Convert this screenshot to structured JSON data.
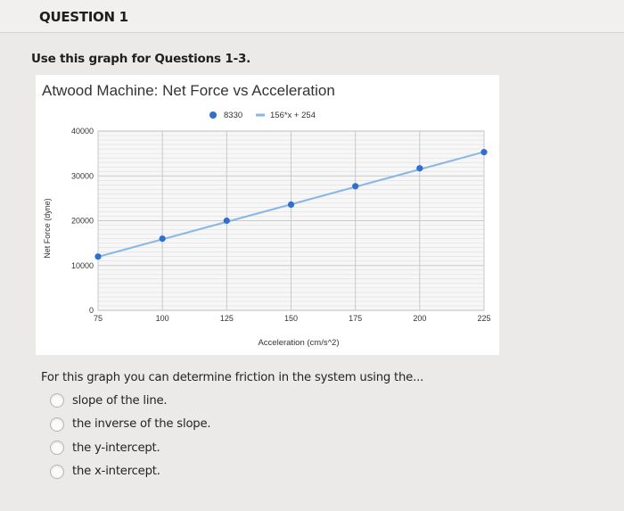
{
  "question": {
    "title": "QUESTION 1",
    "instruction": "Use this graph for Questions 1-3.",
    "prompt": "For this graph you can determine friction in the system using the...",
    "options": [
      "slope of the line.",
      "the inverse of the slope.",
      "the y-intercept.",
      "the x-intercept."
    ]
  },
  "colors": {
    "series_point": "#2f6fcf",
    "trendline": "#8ab6e6",
    "grid": "#c9c9c9",
    "plot_bg": "#f7f7f7"
  },
  "chart_data": {
    "type": "scatter",
    "title": "Atwood Machine: Net Force vs Acceleration",
    "xlabel": "Acceleration (cm/s^2)",
    "ylabel": "Net Force (dyne)",
    "xlim": [
      75,
      225
    ],
    "ylim": [
      0,
      40000
    ],
    "x_ticks": [
      "75",
      "100",
      "125",
      "150",
      "175",
      "200",
      "225"
    ],
    "y_ticks": [
      "0",
      "10000",
      "20000",
      "30000",
      "40000"
    ],
    "grid": true,
    "legend_position": "top",
    "series": [
      {
        "name": "8330",
        "kind": "points",
        "x": [
          75,
          100,
          125,
          150,
          175,
          200,
          225
        ],
        "y": [
          12000,
          16000,
          20000,
          23600,
          27700,
          31700,
          35300
        ]
      },
      {
        "name": "156*x + 254",
        "kind": "trendline",
        "slope": 156,
        "intercept": 254
      }
    ]
  }
}
